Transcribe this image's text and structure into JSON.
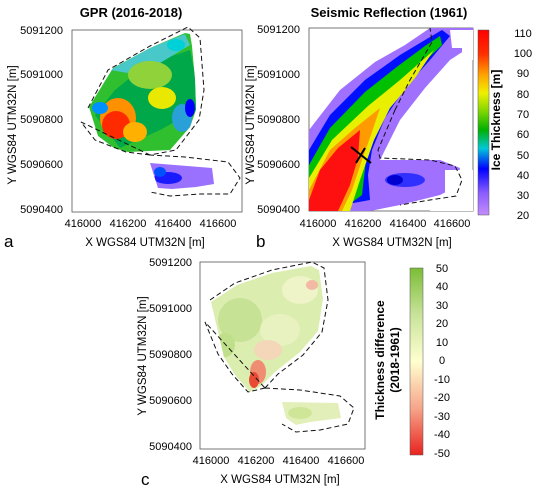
{
  "panel_a": {
    "letter": "a",
    "title": "GPR (2016-2018)",
    "xlabel": "X WGS84 UTM32N [m]",
    "ylabel": "Y WGS84 UTM32N [m]",
    "xticks": [
      "416000",
      "416200",
      "416400",
      "416600"
    ],
    "yticks": [
      "5091200",
      "5091000",
      "5090800",
      "5090600",
      "5090400"
    ]
  },
  "panel_b": {
    "letter": "b",
    "title": "Seismic Reflection (1961)",
    "xlabel": "X WGS84 UTM32N [m]",
    "ylabel": "Y WGS84 UTM32N [m]",
    "xticks": [
      "416000",
      "416200",
      "416400",
      "416600"
    ],
    "yticks": [
      "5091200",
      "5091000",
      "5090800",
      "5090600",
      "5090400"
    ]
  },
  "panel_c": {
    "letter": "c",
    "xlabel": "X WGS84 UTM32N [m]",
    "ylabel": "Y WGS84 UTM32N [m]",
    "xticks": [
      "416000",
      "416200",
      "416400",
      "416600"
    ],
    "yticks": [
      "5091200",
      "5091000",
      "5090800",
      "5090600",
      "5090400"
    ]
  },
  "colorbar_thickness": {
    "label": "Ice Thickness [m]",
    "ticks": [
      "110",
      "100",
      "90",
      "80",
      "70",
      "60",
      "50",
      "40",
      "30",
      "20"
    ],
    "range": [
      20,
      110
    ],
    "colors": [
      "#f4e14a",
      "#ff0000",
      "#ff7a00",
      "#ffe600",
      "#7fd600",
      "#00b400",
      "#00c8c8",
      "#0000ff",
      "#9d6cff",
      "#c48cff"
    ]
  },
  "colorbar_difference": {
    "label_line1": "Thickness difference",
    "label_line2": "(2018-1961)",
    "ticks": [
      "50",
      "40",
      "30",
      "20",
      "10",
      "0",
      "-10",
      "-20",
      "-30",
      "-40",
      "-50"
    ],
    "range": [
      -50,
      50
    ],
    "colors": [
      "#8ac43f",
      "#ffffcc",
      "#e8231f"
    ]
  }
}
